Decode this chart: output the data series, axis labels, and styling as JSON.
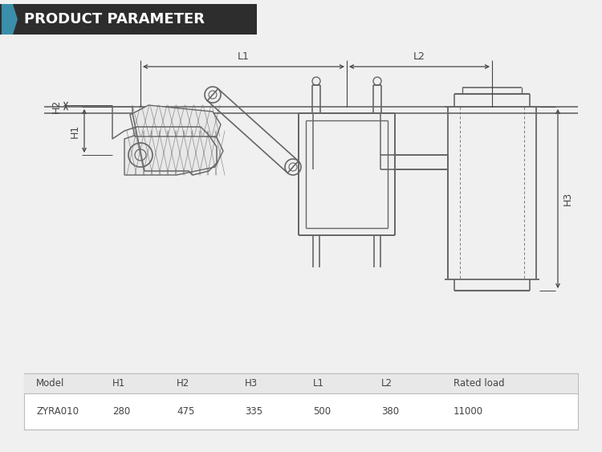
{
  "title": "PRODUCT PARAMETER",
  "title_bg_color": "#2d2d2d",
  "title_accent_color": "#3a8faa",
  "title_text_color": "#ffffff",
  "bg_color": "#f0f0f0",
  "diagram_bg": "#ebebeb",
  "table_bg": "#f0f0f0",
  "table_row_bg": "#ffffff",
  "table_headers": [
    "Model",
    "H1",
    "H2",
    "H3",
    "L1",
    "L2",
    "Rated load"
  ],
  "table_row": [
    "ZYRA010",
    "280",
    "475",
    "335",
    "500",
    "380",
    "11000"
  ],
  "line_color": "#666666",
  "dim_color": "#444444",
  "dark_line": "#444444"
}
